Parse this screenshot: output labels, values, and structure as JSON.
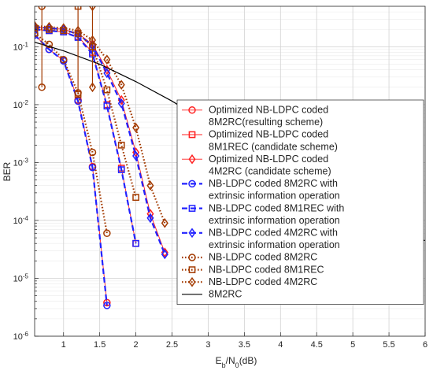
{
  "chart_data": {
    "type": "line",
    "xlabel": "E",
    "xlabel_sub": "b",
    "xlabel_rest": "/N",
    "xlabel_sub2": "0",
    "xlabel_unit": "(dB)",
    "ylabel": "BER",
    "yscale": "log",
    "xlim": [
      0.6,
      6
    ],
    "ylim": [
      1e-06,
      0.5
    ],
    "grid": true,
    "legend_position": "right",
    "x_ticks": [
      "1",
      "1.5",
      "2",
      "2.5",
      "3",
      "3.5",
      "4",
      "4.5",
      "5",
      "5.5",
      "6"
    ],
    "y_tick_bases": [
      "10",
      "10",
      "10",
      "10",
      "10",
      "10"
    ],
    "y_tick_exps": [
      "-1",
      "-2",
      "-3",
      "-4",
      "-5",
      "-6"
    ],
    "series": [
      {
        "legend_lines": [
          "Optimized NB-LDPC coded",
          "8M2RC(resulting scheme)"
        ],
        "color": "#ff2020",
        "marker": "circle",
        "dash": "solid",
        "width": 0.9,
        "hollow": true,
        "x": [
          0.6,
          0.8,
          1.0,
          1.2,
          1.4,
          1.6
        ],
        "y": [
          0.16,
          0.09,
          0.058,
          0.012,
          0.00085,
          3.8e-06
        ]
      },
      {
        "legend_lines": [
          "Optimized NB-LDPC coded",
          "8M1REC (candidate scheme)"
        ],
        "color": "#ff2020",
        "marker": "square",
        "dash": "solid",
        "width": 0.9,
        "hollow": true,
        "x": [
          0.6,
          0.8,
          1.0,
          1.2,
          1.4,
          1.6,
          1.8,
          2.0
        ],
        "y": [
          0.2,
          0.19,
          0.18,
          0.15,
          0.08,
          0.01,
          0.0008,
          4e-05
        ]
      },
      {
        "legend_lines": [
          "Optimized NB-LDPC coded",
          "4M2RC (candidate scheme)"
        ],
        "color": "#ff2020",
        "marker": "diamond",
        "dash": "solid",
        "width": 0.9,
        "hollow": true,
        "x": [
          0.6,
          0.8,
          1.0,
          1.2,
          1.4,
          1.6,
          1.8,
          2.0,
          2.2,
          2.4
        ],
        "y": [
          0.22,
          0.21,
          0.2,
          0.17,
          0.11,
          0.04,
          0.012,
          0.0015,
          0.00013,
          2.8e-05
        ]
      },
      {
        "legend_lines": [
          "NB-LDPC coded 8M2RC with",
          "extrinsic information operation"
        ],
        "color": "#2222ff",
        "marker": "circle",
        "dash": "dashed",
        "width": 2.2,
        "hollow": true,
        "x": [
          0.6,
          0.8,
          1.0,
          1.2,
          1.4,
          1.6
        ],
        "y": [
          0.16,
          0.09,
          0.057,
          0.0115,
          0.00082,
          3.4e-06
        ]
      },
      {
        "legend_lines": [
          "NB-LDPC coded 8M1REC with",
          "extrinsic information operation"
        ],
        "color": "#2222ff",
        "marker": "square",
        "dash": "dashed",
        "width": 2.2,
        "hollow": true,
        "x": [
          0.6,
          0.8,
          1.0,
          1.2,
          1.4,
          1.6,
          1.8,
          2.0
        ],
        "y": [
          0.2,
          0.19,
          0.18,
          0.145,
          0.075,
          0.0095,
          0.00075,
          4e-05
        ]
      },
      {
        "legend_lines": [
          "NB-LDPC coded 4M2RC with",
          "extrinsic information operation"
        ],
        "color": "#2222ff",
        "marker": "diamond",
        "dash": "dashed",
        "width": 2.2,
        "hollow": true,
        "x": [
          0.6,
          0.8,
          1.0,
          1.2,
          1.4,
          1.6,
          1.8,
          2.0,
          2.2,
          2.4
        ],
        "y": [
          0.22,
          0.21,
          0.2,
          0.165,
          0.105,
          0.035,
          0.0105,
          0.0013,
          0.00011,
          2.6e-05
        ]
      },
      {
        "legend_lines": [
          "NB-LDPC coded 8M2RC"
        ],
        "color": "#a33a00",
        "marker": "circle",
        "dash": "dotted",
        "width": 2.2,
        "hollow": true,
        "x": [
          0.6,
          0.8,
          1.0,
          1.2,
          1.4,
          1.6
        ],
        "y": [
          0.17,
          0.11,
          0.06,
          0.016,
          0.0015,
          6e-05
        ]
      },
      {
        "legend_lines": [
          "NB-LDPC coded 8M1REC"
        ],
        "color": "#a33a00",
        "marker": "square",
        "dash": "dotted",
        "width": 2.2,
        "hollow": true,
        "x": [
          0.6,
          0.8,
          1.0,
          1.2,
          1.4,
          1.6,
          1.8,
          2.0
        ],
        "y": [
          0.21,
          0.2,
          0.19,
          0.17,
          0.1,
          0.018,
          0.002,
          0.00025
        ]
      },
      {
        "legend_lines": [
          "NB-LDPC coded 4M2RC"
        ],
        "color": "#a33a00",
        "marker": "diamond",
        "dash": "dotted",
        "width": 2.2,
        "hollow": true,
        "x": [
          0.6,
          0.8,
          1.0,
          1.2,
          1.4,
          1.6,
          1.8,
          2.0,
          2.2,
          2.4
        ],
        "y": [
          0.23,
          0.22,
          0.21,
          0.19,
          0.13,
          0.06,
          0.022,
          0.004,
          0.0004,
          9e-05
        ]
      },
      {
        "legend_lines": [
          "8M2RC"
        ],
        "color": "#000000",
        "marker": "none",
        "dash": "solid",
        "width": 1.2,
        "hollow": false,
        "x": [
          0.6,
          1.0,
          1.5,
          2.0,
          2.5,
          3.0,
          3.5,
          4.0,
          4.5,
          5.0,
          5.5,
          6.0
        ],
        "y": [
          0.12,
          0.085,
          0.05,
          0.025,
          0.0115,
          0.0048,
          0.0019,
          0.00076,
          0.00031,
          0.00013,
          5.5e-05,
          4.5e-05
        ]
      }
    ],
    "error_bars": [
      {
        "color": "#a33a00",
        "marker": "circle",
        "x": 0.7,
        "y": 0.5,
        "low": 0.02,
        "high": 0.5
      },
      {
        "color": "#a33a00",
        "marker": "square",
        "x": 1.2,
        "y": 0.5,
        "low": 0.015,
        "high": 0.5
      },
      {
        "color": "#a33a00",
        "marker": "diamond",
        "x": 1.4,
        "y": 0.5,
        "low": 0.02,
        "high": 0.5
      }
    ]
  }
}
